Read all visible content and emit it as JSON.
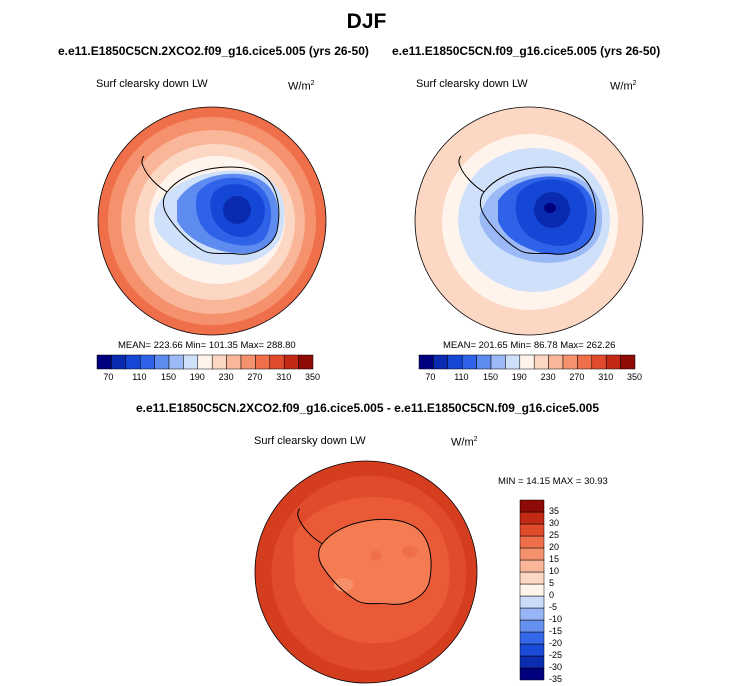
{
  "figure_title": "DJF",
  "panels": [
    {
      "case_title": "e.e11.E1850C5CN.2XCO2.f09_g16.cice5.005 (yrs 26-50)",
      "variable": "Surf clearsky down LW",
      "units": "W/m",
      "units_exp": "2",
      "stats": "MEAN= 223.66  Min= 101.35  Max= 288.80"
    },
    {
      "case_title": "e.e11.E1850C5CN.f09_g16.cice5.005 (yrs 26-50)",
      "variable": "Surf clearsky down LW",
      "units": "W/m",
      "units_exp": "2",
      "stats": "MEAN= 201.65  Min= 86.78  Max= 262.26"
    },
    {
      "case_title": "e.e11.E1850C5CN.2XCO2.f09_g16.cice5.005 - e.e11.E1850C5CN.f09_g16.cice5.005",
      "variable": "Surf clearsky down LW",
      "units": "W/m",
      "units_exp": "2",
      "stats": "MIN =  14.15 MAX =  30.93"
    }
  ],
  "colorbar_abs": {
    "colors": [
      "#00007f",
      "#0a2bb0",
      "#1547d6",
      "#2e62e8",
      "#5d8bf0",
      "#9ab9f6",
      "#cfe0fb",
      "#fff4ec",
      "#fcd8c4",
      "#f9b698",
      "#f5926d",
      "#ef6f4b",
      "#e04b2c",
      "#c22a16",
      "#8e0c05"
    ],
    "tick_labels": [
      "70",
      "110",
      "150",
      "190",
      "230",
      "270",
      "310",
      "350"
    ]
  },
  "colorbar_diff": {
    "colors": [
      "#00007f",
      "#0c2db2",
      "#1a4bd8",
      "#3568e8",
      "#6690f0",
      "#98b6f5",
      "#cadcfa",
      "#fff4ec",
      "#fcd8c4",
      "#f9b698",
      "#f5926d",
      "#ef6f4b",
      "#e04b2c",
      "#c22a16",
      "#8e0c05"
    ],
    "tick_labels": [
      "35",
      "30",
      "25",
      "20",
      "15",
      "10",
      "5",
      "0",
      "-5",
      "-10",
      "-15",
      "-20",
      "-25",
      "-30",
      "-35"
    ]
  }
}
